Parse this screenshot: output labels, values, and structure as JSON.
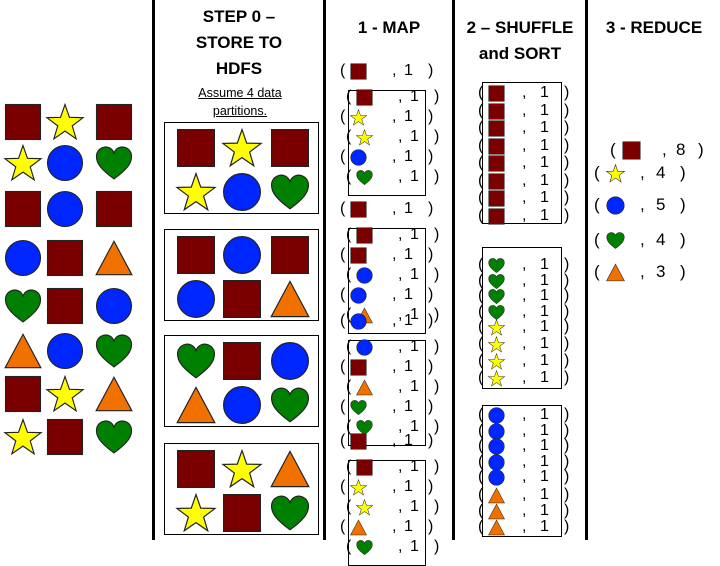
{
  "titles": {
    "step0": [
      "STEP 0 –",
      "STORE  TO",
      "HDFS"
    ],
    "map": "1 - MAP",
    "shuffle": [
      "2 – SHUFFLE",
      "and SORT"
    ],
    "reduce": "3 - REDUCE"
  },
  "step0_note": [
    "Assume 4 data",
    "partitions."
  ],
  "pair_value": "1",
  "shapes_legend": {
    "square": {
      "name": "square",
      "color": "#7a0000"
    },
    "star": {
      "name": "star",
      "color": "#ffff00"
    },
    "circle": {
      "name": "circle",
      "color": "#0026ff"
    },
    "heart": {
      "name": "heart",
      "color": "#008000"
    },
    "triangle": {
      "name": "triangle",
      "color": "#f07000"
    }
  },
  "source_grid": [
    [
      "square",
      "star",
      "square"
    ],
    [
      "star",
      "circle",
      "heart"
    ],
    [
      "square",
      "circle",
      "square"
    ],
    [
      "circle",
      "square",
      "triangle"
    ],
    [
      "heart",
      "square",
      "circle"
    ],
    [
      "triangle",
      "circle",
      "heart"
    ],
    [
      "square",
      "star",
      "triangle"
    ],
    [
      "star",
      "square",
      "heart"
    ]
  ],
  "partitions": [
    [
      "square",
      "star",
      "square",
      "star",
      "circle",
      "heart"
    ],
    [
      "square",
      "circle",
      "square",
      "circle",
      "square",
      "triangle"
    ],
    [
      "heart",
      "square",
      "circle",
      "triangle",
      "circle",
      "heart"
    ],
    [
      "square",
      "star",
      "triangle",
      "star",
      "square",
      "heart"
    ]
  ],
  "map_partitions": [
    [
      "square",
      "square",
      "star",
      "star",
      "circle",
      "heart"
    ],
    [
      "square",
      "square",
      "square",
      "circle",
      "circle",
      "triangle"
    ],
    [
      "circle",
      "circle",
      "square",
      "triangle",
      "heart",
      "heart"
    ],
    [
      "square",
      "square",
      "star",
      "star",
      "triangle",
      "heart"
    ]
  ],
  "shuffle_groups": [
    {
      "shape": "square",
      "count": 8
    },
    {
      "shape": "heart",
      "count": 4
    },
    {
      "shape": "star",
      "count": 4
    },
    {
      "shape": "circle",
      "count": 5
    },
    {
      "shape": "triangle",
      "count": 3
    }
  ],
  "reduce": [
    {
      "shape": "square",
      "value": "8"
    },
    {
      "shape": "star",
      "value": "4"
    },
    {
      "shape": "circle",
      "value": "5"
    },
    {
      "shape": "heart",
      "value": "4"
    },
    {
      "shape": "triangle",
      "value": "3"
    }
  ]
}
